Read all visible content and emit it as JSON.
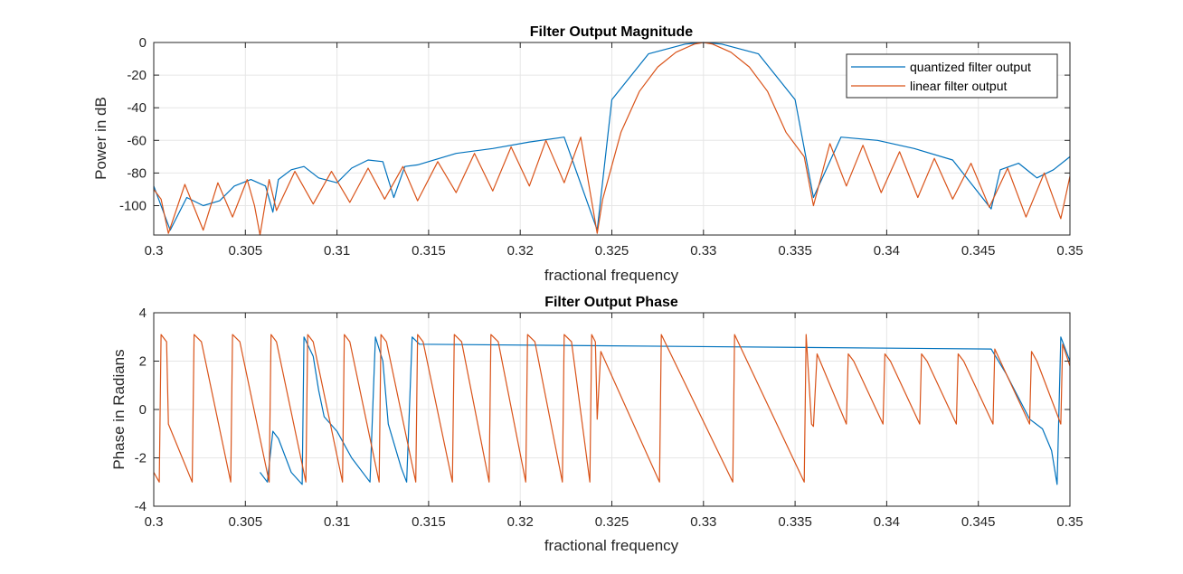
{
  "colors": {
    "quantized": "#0072BD",
    "linear": "#D95319",
    "grid": "#E6E6E6",
    "axis": "#262626"
  },
  "chart_data": [
    {
      "type": "line",
      "title": "Filter Output Magnitude",
      "xlabel": "fractional frequency",
      "ylabel": "Power in dB",
      "xlim": [
        0.3,
        0.35
      ],
      "ylim": [
        -118,
        0
      ],
      "xticks": [
        0.3,
        0.305,
        0.31,
        0.315,
        0.32,
        0.325,
        0.33,
        0.335,
        0.34,
        0.345,
        0.35
      ],
      "xtick_labels": [
        "0.3",
        "0.305",
        "0.31",
        "0.315",
        "0.32",
        "0.325",
        "0.33",
        "0.335",
        "0.34",
        "0.345",
        "0.35"
      ],
      "yticks": [
        -100,
        -80,
        -60,
        -40,
        -20,
        0
      ],
      "ytick_labels": [
        "-100",
        "-80",
        "-60",
        "-40",
        "-20",
        "0"
      ],
      "grid": true,
      "legend": "top-right",
      "series": [
        {
          "name": "quantized filter output",
          "color": "#0072BD",
          "x": [
            0.3,
            0.3009,
            0.3018,
            0.3027,
            0.3036,
            0.3044,
            0.3053,
            0.3061,
            0.3065,
            0.3068,
            0.3075,
            0.3082,
            0.309,
            0.31,
            0.3108,
            0.3117,
            0.3125,
            0.3131,
            0.3137,
            0.3144,
            0.3165,
            0.3185,
            0.3205,
            0.3224,
            0.3242,
            0.325,
            0.327,
            0.329,
            0.33,
            0.331,
            0.333,
            0.335,
            0.336,
            0.3375,
            0.3395,
            0.3415,
            0.3436,
            0.3457,
            0.3462,
            0.3472,
            0.3482,
            0.3491,
            0.35
          ],
          "y": [
            -88,
            -115,
            -95,
            -100,
            -97,
            -88,
            -84,
            -88,
            -104,
            -84,
            -78,
            -76,
            -83,
            -86,
            -77,
            -72,
            -73,
            -95,
            -76,
            -75,
            -68,
            -65,
            -61,
            -58,
            -115,
            -35,
            -7,
            -1,
            0,
            -1,
            -7,
            -35,
            -95,
            -58,
            -60,
            -65,
            -72,
            -102,
            -78,
            -74,
            -83,
            -78,
            -70
          ]
        },
        {
          "name": "linear filter output",
          "color": "#D95319",
          "x": [
            0.3,
            0.3004,
            0.3008,
            0.3017,
            0.3027,
            0.3035,
            0.3043,
            0.3051,
            0.3055,
            0.3058,
            0.3063,
            0.3067,
            0.3077,
            0.3087,
            0.3097,
            0.3107,
            0.3117,
            0.3126,
            0.3136,
            0.3144,
            0.3155,
            0.3165,
            0.3175,
            0.3185,
            0.3195,
            0.3205,
            0.3214,
            0.3224,
            0.3233,
            0.3242,
            0.3245,
            0.3255,
            0.3265,
            0.3275,
            0.3285,
            0.3295,
            0.33,
            0.3305,
            0.3315,
            0.3325,
            0.3335,
            0.3345,
            0.3355,
            0.336,
            0.3369,
            0.3378,
            0.3387,
            0.3397,
            0.3407,
            0.3417,
            0.3426,
            0.3436,
            0.3446,
            0.3456,
            0.3466,
            0.3476,
            0.3486,
            0.3495,
            0.35
          ],
          "y": [
            -90,
            -96,
            -117,
            -87,
            -115,
            -86,
            -107,
            -84,
            -100,
            -118,
            -84,
            -103,
            -79,
            -99,
            -79,
            -98,
            -77,
            -96,
            -76,
            -97,
            -73,
            -92,
            -68,
            -91,
            -64,
            -88,
            -60,
            -86,
            -58,
            -117,
            -96,
            -55,
            -30,
            -15,
            -6,
            -1,
            0,
            -1,
            -6,
            -15,
            -30,
            -55,
            -70,
            -100,
            -62,
            -88,
            -63,
            -92,
            -67,
            -95,
            -71,
            -96,
            -74,
            -101,
            -77,
            -107,
            -80,
            -108,
            -82
          ]
        }
      ]
    },
    {
      "type": "line",
      "title": "Filter Output Phase",
      "xlabel": "fractional frequency",
      "ylabel": "Phase in Radians",
      "xlim": [
        0.3,
        0.35
      ],
      "ylim": [
        -4,
        4
      ],
      "xticks": [
        0.3,
        0.305,
        0.31,
        0.315,
        0.32,
        0.325,
        0.33,
        0.335,
        0.34,
        0.345,
        0.35
      ],
      "xtick_labels": [
        "0.3",
        "0.305",
        "0.31",
        "0.315",
        "0.32",
        "0.325",
        "0.33",
        "0.335",
        "0.34",
        "0.345",
        "0.35"
      ],
      "yticks": [
        -4,
        -2,
        0,
        2,
        4
      ],
      "ytick_labels": [
        "-4",
        "-2",
        "0",
        "2",
        "4"
      ],
      "grid": true,
      "series": [
        {
          "name": "quantized filter output",
          "color": "#0072BD",
          "x": [
            0.3058,
            0.3062,
            0.3065,
            0.3068,
            0.3075,
            0.3081,
            0.3082,
            0.3087,
            0.309,
            0.3093,
            0.31,
            0.3108,
            0.3118,
            0.3121,
            0.3125,
            0.3128,
            0.3135,
            0.3138,
            0.3141,
            0.3145,
            0.3457,
            0.3465,
            0.3478,
            0.3485,
            0.349,
            0.3493,
            0.3495,
            0.35
          ],
          "y": [
            -2.6,
            -3.0,
            -0.9,
            -1.2,
            -2.6,
            -3.1,
            3.0,
            2.2,
            0.8,
            -0.3,
            -0.9,
            -2.0,
            -3.0,
            3.0,
            2.0,
            -0.6,
            -2.4,
            -3.0,
            3.0,
            2.7,
            2.5,
            1.5,
            -0.4,
            -0.8,
            -1.7,
            -3.1,
            3.0,
            2.0
          ]
        },
        {
          "name": "linear filter output",
          "color": "#D95319",
          "x": [
            0.3,
            0.3003,
            0.3004,
            0.3007,
            0.3008,
            0.3021,
            0.3022,
            0.3026,
            0.3042,
            0.3043,
            0.3047,
            0.3063,
            0.3064,
            0.3067,
            0.3083,
            0.3084,
            0.3087,
            0.3103,
            0.3104,
            0.3107,
            0.3123,
            0.3124,
            0.3127,
            0.3143,
            0.3144,
            0.3147,
            0.3163,
            0.3164,
            0.3168,
            0.3183,
            0.3184,
            0.3188,
            0.3203,
            0.3204,
            0.3208,
            0.3223,
            0.3224,
            0.3228,
            0.3238,
            0.3239,
            0.3241,
            0.3242,
            0.3244,
            0.3276,
            0.3277,
            0.3316,
            0.3317,
            0.3355,
            0.3356,
            0.3359,
            0.336,
            0.3362,
            0.3378,
            0.3379,
            0.3382,
            0.3398,
            0.3399,
            0.3402,
            0.3418,
            0.3419,
            0.3422,
            0.3438,
            0.3439,
            0.3442,
            0.3458,
            0.3459,
            0.3462,
            0.3478,
            0.3479,
            0.3482,
            0.3495,
            0.3496,
            0.35
          ],
          "y": [
            -2.6,
            -3.0,
            3.1,
            2.8,
            -0.6,
            -3.0,
            3.1,
            2.8,
            -3.0,
            3.1,
            2.8,
            -3.0,
            3.1,
            2.8,
            -3.0,
            3.1,
            2.8,
            -3.0,
            3.1,
            2.8,
            -3.0,
            3.1,
            2.8,
            -3.0,
            3.1,
            2.8,
            -3.0,
            3.1,
            2.8,
            -3.0,
            3.1,
            2.8,
            -3.0,
            3.1,
            2.8,
            -3.0,
            3.1,
            2.8,
            -3.0,
            3.1,
            2.8,
            -0.4,
            2.4,
            -3.0,
            3.1,
            -3.0,
            3.1,
            -3.0,
            3.1,
            -0.6,
            -0.7,
            2.3,
            -0.6,
            2.3,
            2.0,
            -0.6,
            2.3,
            2.0,
            -0.6,
            2.3,
            2.0,
            -0.6,
            2.3,
            2.0,
            -0.6,
            2.5,
            2.0,
            -0.6,
            2.4,
            2.0,
            -0.6,
            2.7,
            1.8
          ]
        }
      ]
    }
  ]
}
